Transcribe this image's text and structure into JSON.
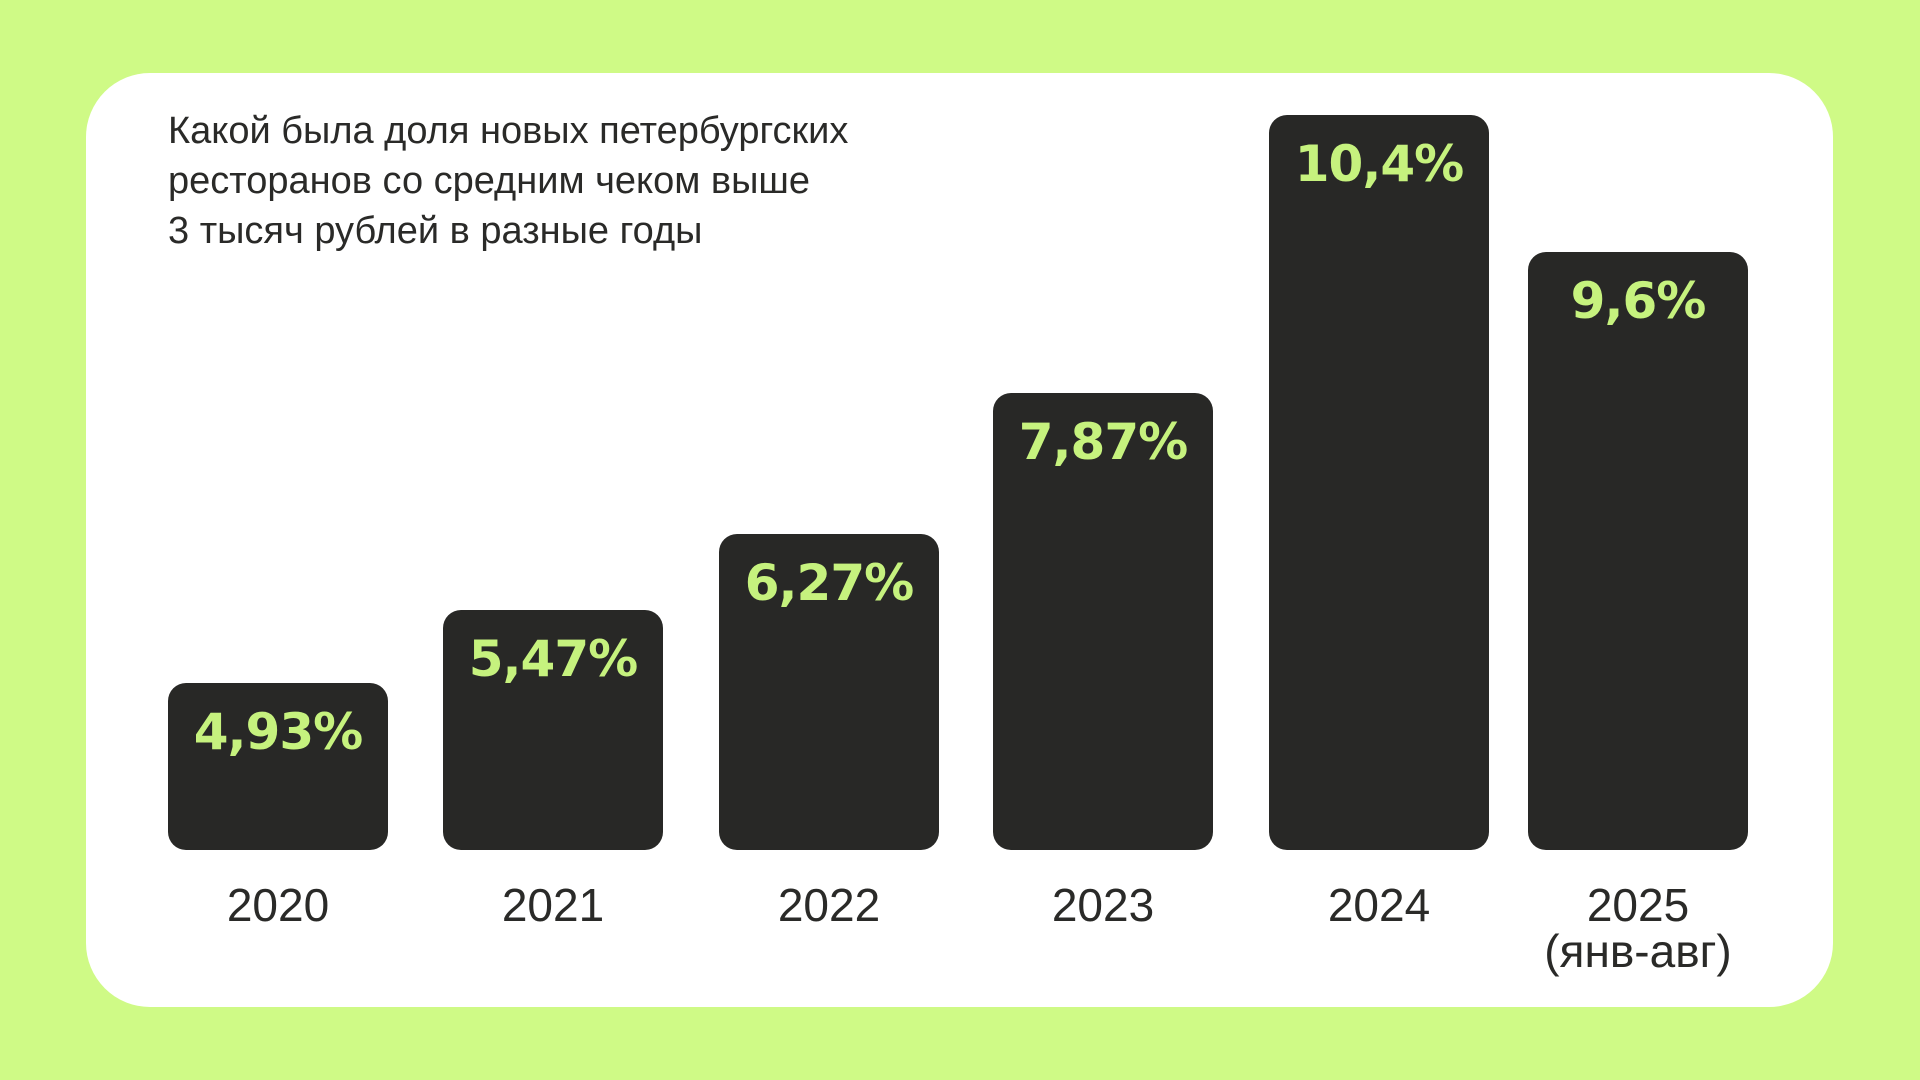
{
  "chart_data": {
    "type": "bar",
    "title": "Какой была доля новых петербургских\nресторанов со средним чеком выше\n3 тысяч рублей в разные годы",
    "categories": [
      "2020",
      "2021",
      "2022",
      "2023",
      "2024",
      "2025\n(янв-авг)"
    ],
    "values": [
      4.93,
      5.47,
      6.27,
      7.87,
      10.4,
      9.6
    ],
    "data_labels": [
      "4,93%",
      "5,47%",
      "6,27%",
      "7,87%",
      "10,4%",
      "9,6%"
    ],
    "xlabel": "",
    "ylabel": "",
    "grid": false,
    "colors": {
      "background": "#cffa86",
      "card": "#ffffff",
      "bar": "#282826",
      "label": "#c6f27e",
      "text": "#2a2a28"
    }
  }
}
